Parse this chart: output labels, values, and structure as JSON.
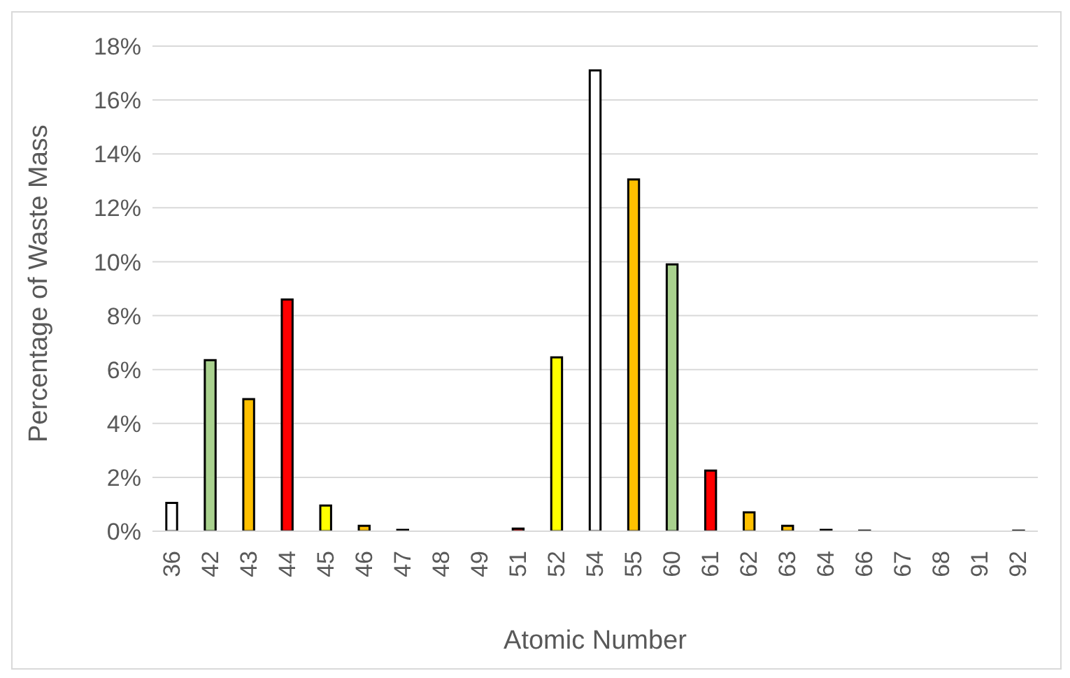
{
  "chart_data": {
    "type": "bar",
    "xlabel": "Atomic Number",
    "ylabel": "Percentage of Waste Mass",
    "categories": [
      "36",
      "42",
      "43",
      "44",
      "45",
      "46",
      "47",
      "48",
      "49",
      "51",
      "52",
      "54",
      "55",
      "60",
      "61",
      "62",
      "63",
      "64",
      "66",
      "67",
      "68",
      "91",
      "92"
    ],
    "values": [
      1.05,
      6.35,
      4.9,
      8.6,
      0.95,
      0.2,
      0.05,
      null,
      null,
      0.1,
      6.45,
      17.1,
      13.05,
      9.9,
      2.25,
      0.7,
      0.2,
      0.05,
      0.02,
      0,
      0,
      0,
      0.02
    ],
    "colors": [
      "#ffffff",
      "#a9d18e",
      "#ffc000",
      "#ff0000",
      "#ffff00",
      "#ffc000",
      "#ffffff",
      "#d9d9d9",
      "#d9d9d9",
      "#ff0000",
      "#ffff00",
      "#ffffff",
      "#ffc000",
      "#a9d18e",
      "#ff0000",
      "#ffc000",
      "#ffc000",
      "#ffffff",
      "#d9d9d9",
      "#d9d9d9",
      "#d9d9d9",
      "#d9d9d9",
      "#d9d9d9"
    ],
    "ylim": [
      0,
      18
    ],
    "yticks": [
      {
        "value": 0,
        "label": "0%"
      },
      {
        "value": 2,
        "label": "2%"
      },
      {
        "value": 4,
        "label": "4%"
      },
      {
        "value": 6,
        "label": "6%"
      },
      {
        "value": 8,
        "label": "8%"
      },
      {
        "value": 10,
        "label": "10%"
      },
      {
        "value": 12,
        "label": "12%"
      },
      {
        "value": 14,
        "label": "14%"
      },
      {
        "value": 16,
        "label": "16%"
      },
      {
        "value": 18,
        "label": "18%"
      }
    ],
    "grid": "y",
    "legend": false
  }
}
